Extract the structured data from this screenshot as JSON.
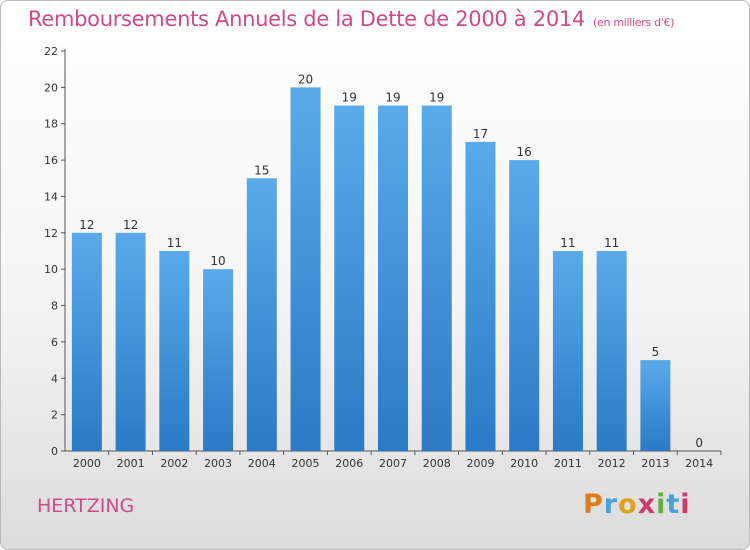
{
  "chart_data": {
    "type": "bar",
    "title": "Remboursements Annuels de la Dette de 2000 à 2014",
    "subtitle": "(en milliers d'€)",
    "categories": [
      "2000",
      "2001",
      "2002",
      "2003",
      "2004",
      "2005",
      "2006",
      "2007",
      "2008",
      "2009",
      "2010",
      "2011",
      "2012",
      "2013",
      "2014"
    ],
    "values": [
      12,
      12,
      11,
      10,
      15,
      20,
      19,
      19,
      19,
      17,
      16,
      11,
      11,
      5,
      0
    ],
    "ylim": [
      0,
      22
    ],
    "yticks": [
      0,
      2,
      4,
      6,
      8,
      10,
      12,
      14,
      16,
      18,
      20,
      22
    ],
    "grid": false,
    "colors": {
      "bar_top": "#5aaaea",
      "bar_bottom": "#2a7ac6",
      "title": "#d04a87"
    }
  },
  "footer": {
    "place_name": "HERTZING",
    "logo_letters": [
      {
        "ch": "P",
        "color": "#e07a20"
      },
      {
        "ch": "r",
        "color": "#4aa0d8"
      },
      {
        "ch": "o",
        "color": "#e0a020"
      },
      {
        "ch": "x",
        "color": "#d03a6a"
      },
      {
        "ch": "i",
        "color": "#60b040"
      },
      {
        "ch": "t",
        "color": "#4aa0d8"
      },
      {
        "ch": "i",
        "color": "#d03a6a"
      }
    ]
  }
}
